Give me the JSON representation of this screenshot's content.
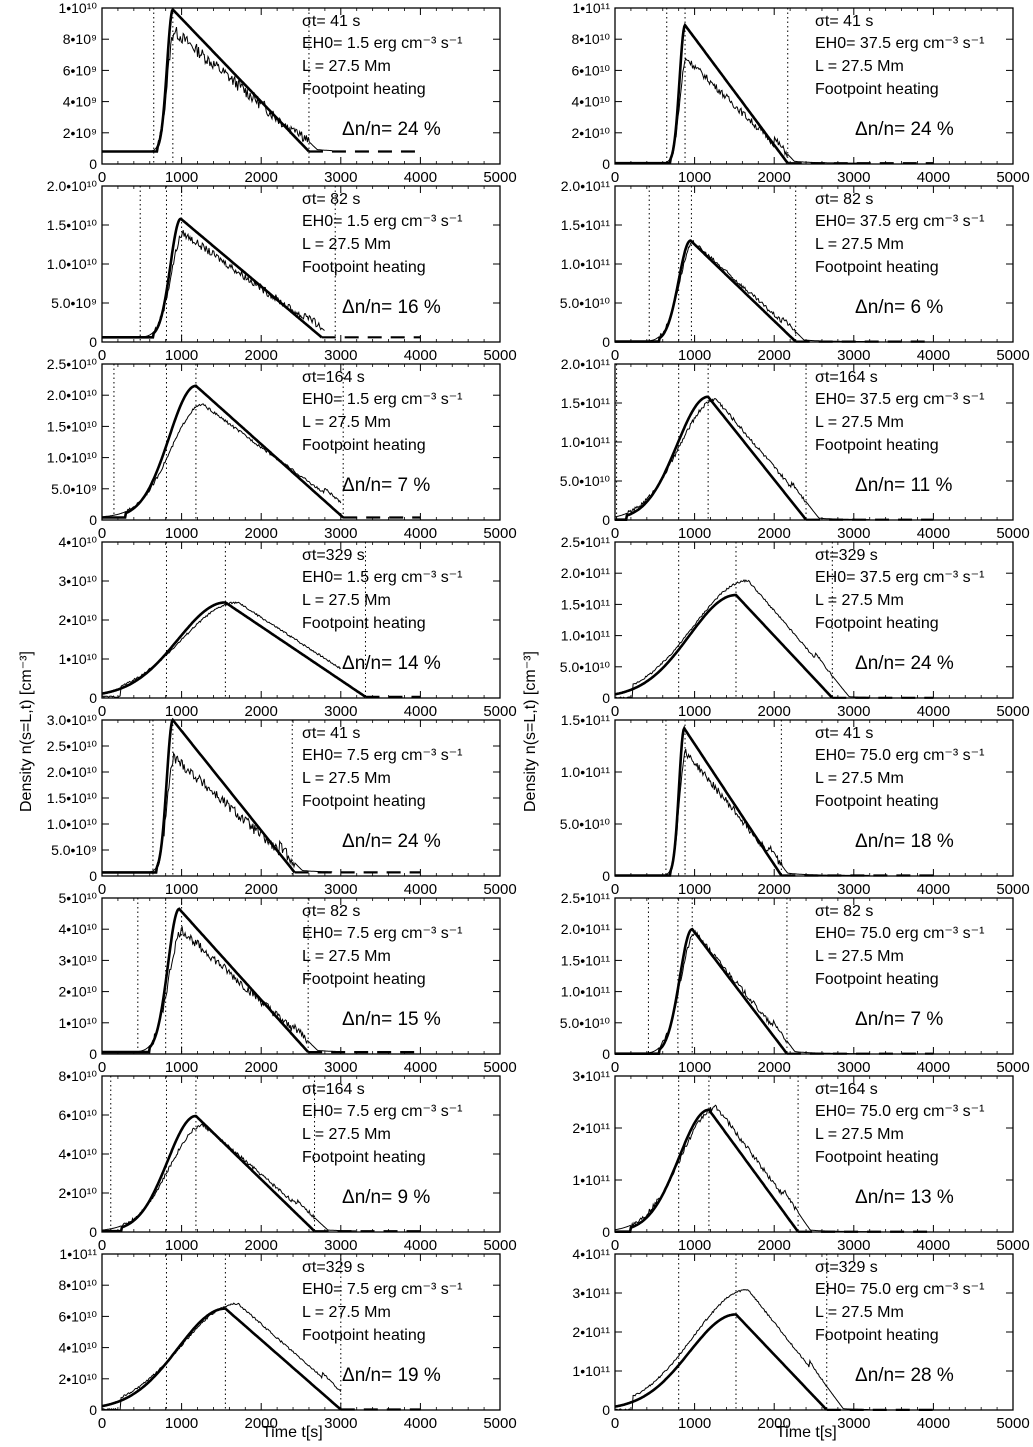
{
  "figure": {
    "ylabel": "Density  n(s=L,t) [cm⁻³]",
    "xlabel": "Time t[s]"
  },
  "chart_data": [
    {
      "type": "line",
      "sigma_label": "σt= 41 s",
      "energy_label": "EH0=  1.5 erg cm⁻³ s⁻¹",
      "length_label": "L =  27.5 Mm",
      "heating_label": "Footpoint heating",
      "delta_label": "Δn/n= 24 %",
      "xlim": [
        0,
        5000
      ],
      "ylim": [
        0,
        10000000000.0
      ],
      "xticks": [
        0,
        1000,
        2000,
        3000,
        4000,
        5000
      ],
      "yticks": [
        0,
        2000000000.0,
        4000000000.0,
        6000000000.0,
        8000000000.0,
        10000000000.0
      ],
      "ytick_labels": [
        "0",
        "2•10⁹",
        "4•10⁹",
        "6•10⁹",
        "8•10⁹",
        "1•10¹⁰"
      ],
      "dotted_lines": [
        650,
        890,
        2600
      ],
      "base": 800000000.0,
      "t0": 700,
      "t_peak": 890,
      "t_end": 2600,
      "peak": 9900000000.0,
      "obs_factor": 0.86,
      "noise": 0.08,
      "tail_to": 2900
    },
    {
      "type": "line",
      "sigma_label": "σt= 41 s",
      "energy_label": "EH0= 37.5 erg cm⁻³ s⁻¹",
      "length_label": "L =  27.5 Mm",
      "heating_label": "Footpoint heating",
      "delta_label": "Δn/n= 24 %",
      "xlim": [
        0,
        5000
      ],
      "ylim": [
        0,
        100000000000.0
      ],
      "xticks": [
        0,
        1000,
        2000,
        3000,
        4000,
        5000
      ],
      "yticks": [
        0,
        20000000000.0,
        40000000000.0,
        60000000000.0,
        80000000000.0,
        100000000000.0
      ],
      "ytick_labels": [
        "0",
        "2•10¹⁰",
        "4•10¹⁰",
        "6•10¹⁰",
        "8•10¹⁰",
        "1•10¹¹"
      ],
      "dotted_lines": [
        650,
        880,
        2170
      ],
      "base": 500000000.0,
      "t0": 700,
      "t_peak": 880,
      "t_end": 2170,
      "peak": 89000000000.0,
      "obs_factor": 0.76,
      "noise": 0.05,
      "tail_to": 3200
    },
    {
      "type": "line",
      "sigma_label": "σt= 82 s",
      "energy_label": "EH0=  1.5 erg cm⁻³ s⁻¹",
      "length_label": "L =  27.5 Mm",
      "heating_label": "Footpoint heating",
      "delta_label": "Δn/n= 16 %",
      "xlim": [
        0,
        5000
      ],
      "ylim": [
        0,
        20000000000.0
      ],
      "xticks": [
        0,
        1000,
        2000,
        3000,
        4000,
        5000
      ],
      "yticks": [
        0,
        5000000000.0,
        10000000000.0,
        15000000000.0,
        20000000000.0
      ],
      "ytick_labels": [
        "0",
        "5.0•10⁹",
        "1.0•10¹⁰",
        "1.5•10¹⁰",
        "2.0•10¹⁰"
      ],
      "dotted_lines": [
        480,
        810,
        1000,
        2930
      ],
      "base": 600000000.0,
      "t0": 650,
      "t_peak": 990,
      "t_end": 2760,
      "peak": 15800000000.0,
      "obs_factor": 0.88,
      "noise": 0.06,
      "tail_to": 2800
    },
    {
      "type": "line",
      "sigma_label": "σt= 82 s",
      "energy_label": "EH0= 37.5 erg cm⁻³ s⁻¹",
      "length_label": "L =  27.5 Mm",
      "heating_label": "Footpoint heating",
      "delta_label": "Δn/n=  6 %",
      "xlim": [
        0,
        5000
      ],
      "ylim": [
        0,
        200000000000.0
      ],
      "xticks": [
        0,
        1000,
        2000,
        3000,
        4000,
        5000
      ],
      "yticks": [
        0,
        50000000000.0,
        100000000000.0,
        150000000000.0,
        200000000000.0
      ],
      "ytick_labels": [
        "0",
        "5.0•10¹⁰",
        "1.0•10¹¹",
        "1.5•10¹¹",
        "2.0•10¹¹"
      ],
      "dotted_lines": [
        430,
        800,
        960,
        2270
      ],
      "base": 500000000.0,
      "t0": 560,
      "t_peak": 950,
      "t_end": 2270,
      "peak": 130000000000.0,
      "obs_factor": 0.98,
      "noise": 0.04,
      "tail_to": 3200
    },
    {
      "type": "line",
      "sigma_label": "σt=164 s",
      "energy_label": "EH0=  1.5 erg cm⁻³ s⁻¹",
      "length_label": "L =  27.5 Mm",
      "heating_label": "Footpoint heating",
      "delta_label": "Δn/n=  7 %",
      "xlim": [
        0,
        5000
      ],
      "ylim": [
        0,
        25000000000.0
      ],
      "xticks": [
        0,
        1000,
        2000,
        3000,
        4000,
        5000
      ],
      "yticks": [
        0,
        5000000000.0,
        10000000000.0,
        15000000000.0,
        20000000000.0,
        25000000000.0
      ],
      "ytick_labels": [
        "0",
        "5.0•10⁹",
        "1.0•10¹⁰",
        "1.5•10¹⁰",
        "2.0•10¹⁰",
        "2.5•10¹⁰"
      ],
      "dotted_lines": [
        150,
        810,
        1180,
        3030
      ],
      "base": 400000000.0,
      "t0": 300,
      "t_peak": 1180,
      "t_end": 3030,
      "peak": 21500000000.0,
      "obs_factor": 0.86,
      "noise": 0.02,
      "tail_to": 3000
    },
    {
      "type": "line",
      "sigma_label": "σt=164 s",
      "energy_label": "EH0= 37.5 erg cm⁻³ s⁻¹",
      "length_label": "L =  27.5 Mm",
      "heating_label": "Footpoint heating",
      "delta_label": "Δn/n= 11 %",
      "xlim": [
        0,
        5000
      ],
      "ylim": [
        0,
        200000000000.0
      ],
      "xticks": [
        0,
        1000,
        2000,
        3000,
        4000,
        5000
      ],
      "yticks": [
        0,
        50000000000.0,
        100000000000.0,
        150000000000.0,
        200000000000.0
      ],
      "ytick_labels": [
        "0",
        "5.0•10¹⁰",
        "1.0•10¹¹",
        "1.5•10¹¹",
        "2.0•10¹¹"
      ],
      "dotted_lines": [
        20,
        800,
        1170,
        2400
      ],
      "base": 400000000.0,
      "t0": 150,
      "t_peak": 1170,
      "t_end": 2400,
      "peak": 158000000000.0,
      "obs_factor": 0.98,
      "noise": 0.03,
      "tail_to": 3200
    },
    {
      "type": "line",
      "sigma_label": "σt=329 s",
      "energy_label": "EH0=  1.5 erg cm⁻³ s⁻¹",
      "length_label": "L =  27.5 Mm",
      "heating_label": "Footpoint heating",
      "delta_label": "Δn/n= 14 %",
      "xlim": [
        0,
        5000
      ],
      "ylim": [
        0,
        40000000000.0
      ],
      "xticks": [
        0,
        1000,
        2000,
        3000,
        4000,
        5000
      ],
      "yticks": [
        0,
        10000000000.0,
        20000000000.0,
        30000000000.0,
        40000000000.0
      ],
      "ytick_labels": [
        "0",
        "1•10¹⁰",
        "2•10¹⁰",
        "3•10¹⁰",
        "4•10¹⁰"
      ],
      "dotted_lines": [
        810,
        1550,
        3310
      ],
      "base": 300000000.0,
      "t0": 0,
      "t_peak": 1550,
      "t_end": 3310,
      "peak": 24500000000.0,
      "obs_factor": 1.0,
      "noise": 0.02,
      "tail_to": 3000
    },
    {
      "type": "line",
      "sigma_label": "σt=329 s",
      "energy_label": "EH0= 37.5 erg cm⁻³ s⁻¹",
      "length_label": "L =  27.5 Mm",
      "heating_label": "Footpoint heating",
      "delta_label": "Δn/n= 24 %",
      "xlim": [
        0,
        5000
      ],
      "ylim": [
        0,
        250000000000.0
      ],
      "xticks": [
        0,
        1000,
        2000,
        3000,
        4000,
        5000
      ],
      "yticks": [
        0,
        50000000000.0,
        100000000000.0,
        150000000000.0,
        200000000000.0,
        250000000000.0
      ],
      "ytick_labels": [
        "0",
        "5.0•10¹⁰",
        "1.0•10¹¹",
        "1.5•10¹¹",
        "2.0•10¹¹",
        "2.5•10¹¹"
      ],
      "dotted_lines": [
        800,
        1520,
        2730
      ],
      "base": 300000000.0,
      "t0": 0,
      "t_peak": 1520,
      "t_end": 2730,
      "peak": 165000000000.0,
      "obs_factor": 1.14,
      "noise": 0.02,
      "tail_to": 3200
    },
    {
      "type": "line",
      "sigma_label": "σt= 41 s",
      "energy_label": "EH0=  7.5 erg cm⁻³ s⁻¹",
      "length_label": "L =  27.5 Mm",
      "heating_label": "Footpoint heating",
      "delta_label": "Δn/n= 24 %",
      "xlim": [
        0,
        5000
      ],
      "ylim": [
        0,
        30000000000.0
      ],
      "xticks": [
        0,
        1000,
        2000,
        3000,
        4000,
        5000
      ],
      "yticks": [
        0,
        5000000000.0,
        10000000000.0,
        15000000000.0,
        20000000000.0,
        25000000000.0,
        30000000000.0
      ],
      "ytick_labels": [
        "0",
        "5.0•10⁹",
        "1.0•10¹⁰",
        "1.5•10¹⁰",
        "2.0•10¹⁰",
        "2.5•10¹⁰",
        "3.0•10¹⁰"
      ],
      "dotted_lines": [
        640,
        890,
        2390
      ],
      "base": 700000000.0,
      "t0": 690,
      "t_peak": 890,
      "t_end": 2420,
      "peak": 30000000000.0,
      "obs_factor": 0.76,
      "noise": 0.07,
      "tail_to": 2900
    },
    {
      "type": "line",
      "sigma_label": "σt= 41 s",
      "energy_label": "EH0= 75.0 erg cm⁻³ s⁻¹",
      "length_label": "L =  27.5 Mm",
      "heating_label": "Footpoint heating",
      "delta_label": "Δn/n= 18 %",
      "xlim": [
        0,
        5000
      ],
      "ylim": [
        0,
        150000000000.0
      ],
      "xticks": [
        0,
        1000,
        2000,
        3000,
        4000,
        5000
      ],
      "yticks": [
        0,
        50000000000.0,
        100000000000.0,
        150000000000.0
      ],
      "ytick_labels": [
        "0",
        "5.0•10¹⁰",
        "1.0•10¹¹",
        "1.5•10¹¹"
      ],
      "dotted_lines": [
        640,
        880,
        2090
      ],
      "base": 500000000.0,
      "t0": 700,
      "t_peak": 870,
      "t_end": 2090,
      "peak": 142000000000.0,
      "obs_factor": 0.84,
      "noise": 0.05,
      "tail_to": 3200
    },
    {
      "type": "line",
      "sigma_label": "σt= 82 s",
      "energy_label": "EH0=  7.5 erg cm⁻³ s⁻¹",
      "length_label": "L =  27.5 Mm",
      "heating_label": "Footpoint heating",
      "delta_label": "Δn/n= 15 %",
      "xlim": [
        0,
        5000
      ],
      "ylim": [
        0,
        50000000000.0
      ],
      "xticks": [
        0,
        1000,
        2000,
        3000,
        4000,
        5000
      ],
      "yticks": [
        0,
        10000000000.0,
        20000000000.0,
        30000000000.0,
        40000000000.0,
        50000000000.0
      ],
      "ytick_labels": [
        "0",
        "1•10¹⁰",
        "2•10¹⁰",
        "3•10¹⁰",
        "4•10¹⁰",
        "5•10¹⁰"
      ],
      "dotted_lines": [
        450,
        800,
        1000,
        2590
      ],
      "base": 600000000.0,
      "t0": 600,
      "t_peak": 970,
      "t_end": 2590,
      "peak": 46500000000.0,
      "obs_factor": 0.85,
      "noise": 0.06,
      "tail_to": 3000
    },
    {
      "type": "line",
      "sigma_label": "σt= 82 s",
      "energy_label": "EH0= 75.0 erg cm⁻³ s⁻¹",
      "length_label": "L =  27.5 Mm",
      "heating_label": "Footpoint heating",
      "delta_label": "Δn/n=  7 %",
      "xlim": [
        0,
        5000
      ],
      "ylim": [
        0,
        250000000000.0
      ],
      "xticks": [
        0,
        1000,
        2000,
        3000,
        4000,
        5000
      ],
      "yticks": [
        0,
        50000000000.0,
        100000000000.0,
        150000000000.0,
        200000000000.0,
        250000000000.0
      ],
      "ytick_labels": [
        "0",
        "5.0•10¹⁰",
        "1.0•10¹¹",
        "1.5•10¹¹",
        "2.0•10¹¹",
        "2.5•10¹¹"
      ],
      "dotted_lines": [
        420,
        790,
        970,
        2160
      ],
      "base": 500000000.0,
      "t0": 560,
      "t_peak": 970,
      "t_end": 2160,
      "peak": 200000000000.0,
      "obs_factor": 0.97,
      "noise": 0.04,
      "tail_to": 3200
    },
    {
      "type": "line",
      "sigma_label": "σt=164 s",
      "energy_label": "EH0=  7.5 erg cm⁻³ s⁻¹",
      "length_label": "L =  27.5 Mm",
      "heating_label": "Footpoint heating",
      "delta_label": "Δn/n=  9 %",
      "xlim": [
        0,
        5000
      ],
      "ylim": [
        0,
        80000000000.0
      ],
      "xticks": [
        0,
        1000,
        2000,
        3000,
        4000,
        5000
      ],
      "yticks": [
        0,
        20000000000.0,
        40000000000.0,
        60000000000.0,
        80000000000.0
      ],
      "ytick_labels": [
        "0",
        "2•10¹⁰",
        "4•10¹⁰",
        "6•10¹⁰",
        "8•10¹⁰"
      ],
      "dotted_lines": [
        110,
        810,
        1180,
        2670
      ],
      "base": 400000000.0,
      "t0": 250,
      "t_peak": 1180,
      "t_end": 2670,
      "peak": 59500000000.0,
      "obs_factor": 0.92,
      "noise": 0.03,
      "tail_to": 3200
    },
    {
      "type": "line",
      "sigma_label": "σt=164 s",
      "energy_label": "EH0= 75.0 erg cm⁻³ s⁻¹",
      "length_label": "L =  27.5 Mm",
      "heating_label": "Footpoint heating",
      "delta_label": "Δn/n= 13 %",
      "xlim": [
        0,
        5000
      ],
      "ylim": [
        0,
        300000000000.0
      ],
      "xticks": [
        0,
        1000,
        2000,
        3000,
        4000,
        5000
      ],
      "yticks": [
        0,
        100000000000.0,
        200000000000.0,
        300000000000.0
      ],
      "ytick_labels": [
        "0",
        "1•10¹¹",
        "2•10¹¹",
        "3•10¹¹"
      ],
      "dotted_lines": [
        800,
        1180,
        2300
      ],
      "base": 500000000.0,
      "t0": 200,
      "t_peak": 1180,
      "t_end": 2300,
      "peak": 235000000000.0,
      "obs_factor": 1.02,
      "noise": 0.04,
      "tail_to": 3200
    },
    {
      "type": "line",
      "sigma_label": "σt=329 s",
      "energy_label": "EH0=  7.5 erg cm⁻³ s⁻¹",
      "length_label": "L =  27.5 Mm",
      "heating_label": "Footpoint heating",
      "delta_label": "Δn/n= 19 %",
      "xlim": [
        0,
        5000
      ],
      "ylim": [
        0,
        100000000000.0
      ],
      "xticks": [
        0,
        1000,
        2000,
        3000,
        4000,
        5000
      ],
      "yticks": [
        0,
        20000000000.0,
        40000000000.0,
        60000000000.0,
        80000000000.0,
        100000000000.0
      ],
      "ytick_labels": [
        "0",
        "2•10¹⁰",
        "4•10¹⁰",
        "6•10¹⁰",
        "8•10¹⁰",
        "1•10¹¹"
      ],
      "dotted_lines": [
        810,
        1550,
        3000
      ],
      "base": 300000000.0,
      "t0": 0,
      "t_peak": 1550,
      "t_end": 3000,
      "peak": 65000000000.0,
      "obs_factor": 1.05,
      "noise": 0.02,
      "tail_to": 3000
    },
    {
      "type": "line",
      "sigma_label": "σt=329 s",
      "energy_label": "EH0= 75.0 erg cm⁻³ s⁻¹",
      "length_label": "L =  27.5 Mm",
      "heating_label": "Footpoint heating",
      "delta_label": "Δn/n= 28 %",
      "xlim": [
        0,
        5000
      ],
      "ylim": [
        0,
        400000000000.0
      ],
      "xticks": [
        0,
        1000,
        2000,
        3000,
        4000,
        5000
      ],
      "yticks": [
        0,
        100000000000.0,
        200000000000.0,
        300000000000.0,
        400000000000.0
      ],
      "ytick_labels": [
        "0",
        "1•10¹¹",
        "2•10¹¹",
        "3•10¹¹",
        "4•10¹¹"
      ],
      "dotted_lines": [
        800,
        1520,
        2660
      ],
      "base": 300000000.0,
      "t0": 0,
      "t_peak": 1520,
      "t_end": 2660,
      "peak": 245000000000.0,
      "obs_factor": 1.26,
      "noise": 0.02,
      "tail_to": 3200
    }
  ]
}
